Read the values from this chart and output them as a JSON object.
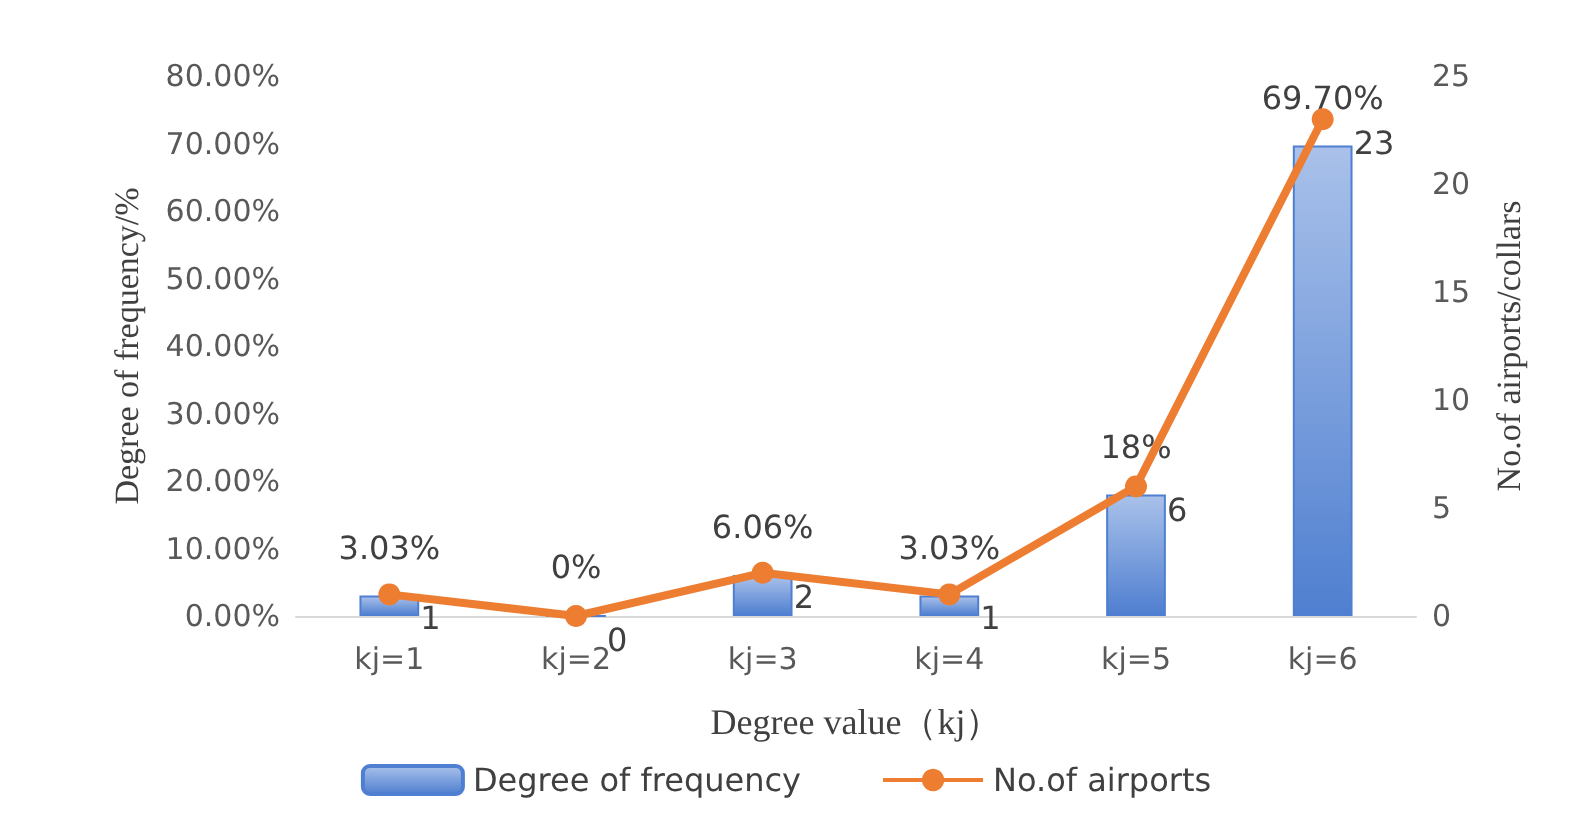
{
  "chart_data": {
    "type": "bar",
    "xlabel": "Degree value（kj）",
    "ylabel": "Degree of frequency/%",
    "y2label": "No.of airports/collars",
    "categories": [
      "kj=1",
      "kj=2",
      "kj=3",
      "kj=4",
      "kj=5",
      "kj=6"
    ],
    "series": [
      {
        "name": "Degree of frequency",
        "color": "#4f7fd0",
        "values": [
          3.03,
          0,
          6.06,
          3.03,
          18,
          69.7
        ],
        "value_labels": [
          "3.03%",
          "0%",
          "6.06%",
          "3.03%",
          "18%",
          "69.70%"
        ]
      },
      {
        "name": "No.of airports",
        "type": "line",
        "axis": "y2",
        "color": "#ed7d31",
        "values": [
          1,
          0,
          2,
          1,
          6,
          23
        ],
        "value_labels": [
          "1",
          "0",
          "2",
          "1",
          "6",
          "23"
        ]
      }
    ],
    "ylim": [
      0,
      80
    ],
    "yticks": [
      {
        "value": 0,
        "label": "0.00%"
      },
      {
        "value": 10,
        "label": "10.00%"
      },
      {
        "value": 20,
        "label": "20.00%"
      },
      {
        "value": 30,
        "label": "30.00%"
      },
      {
        "value": 40,
        "label": "40.00%"
      },
      {
        "value": 50,
        "label": "50.00%"
      },
      {
        "value": 60,
        "label": "60.00%"
      },
      {
        "value": 70,
        "label": "70.00%"
      },
      {
        "value": 80,
        "label": "80.00%"
      }
    ],
    "y2lim": [
      0,
      25
    ],
    "y2ticks": [
      0,
      5,
      10,
      15,
      20,
      25
    ],
    "legend": "bottom",
    "marker": "circle"
  }
}
